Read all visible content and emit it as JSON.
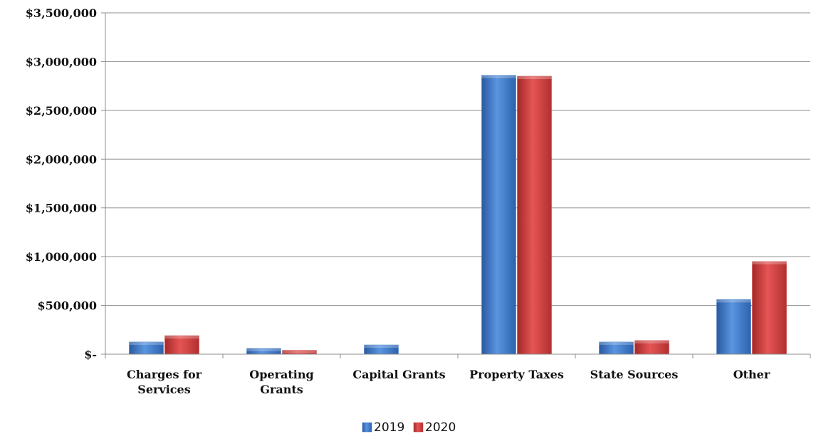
{
  "chart_data": {
    "type": "bar",
    "categories": [
      [
        "Charges for",
        "Services"
      ],
      [
        "Operating",
        "Grants"
      ],
      [
        "Capital Grants"
      ],
      [
        "Property Taxes"
      ],
      [
        "State Sources"
      ],
      [
        "Other"
      ]
    ],
    "series": [
      {
        "name": "2019",
        "color": "#3d78c6",
        "values": [
          125000,
          60000,
          95000,
          2860000,
          125000,
          560000
        ]
      },
      {
        "name": "2020",
        "color": "#c83a3a",
        "values": [
          190000,
          40000,
          0,
          2850000,
          140000,
          950000
        ]
      }
    ],
    "ylim": [
      0,
      3500000
    ],
    "yticks": [
      {
        "value": 0,
        "label": "$-"
      },
      {
        "value": 500000,
        "label": "$500,000"
      },
      {
        "value": 1000000,
        "label": "$1,000,000"
      },
      {
        "value": 1500000,
        "label": "$1,500,000"
      },
      {
        "value": 2000000,
        "label": "$2,000,000"
      },
      {
        "value": 2500000,
        "label": "$2,500,000"
      },
      {
        "value": 3000000,
        "label": "$3,000,000"
      },
      {
        "value": 3500000,
        "label": "$3,500,000"
      }
    ],
    "grid": true,
    "legend_position": "bottom-center"
  }
}
